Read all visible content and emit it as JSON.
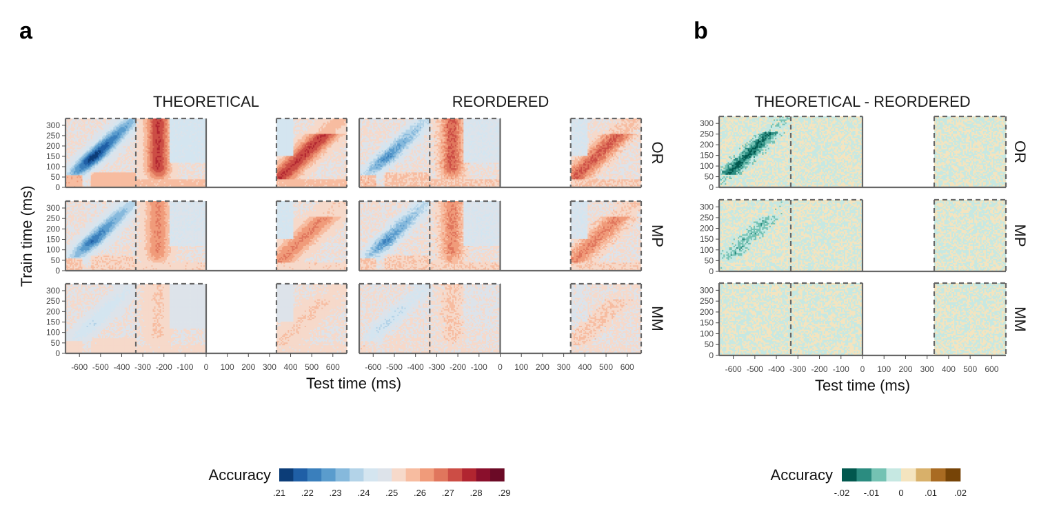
{
  "panels": {
    "a": {
      "letter": "a"
    },
    "b": {
      "letter": "b"
    }
  },
  "chart_data": [
    {
      "type": "heatmap",
      "panel": "a",
      "facet_titles": [
        "THEORETICAL",
        "REORDERED"
      ],
      "rows": [
        "OR",
        "MP",
        "MM"
      ],
      "xlabel": "Test time (ms)",
      "ylabel": "Train time (ms)",
      "xlim": [
        -666,
        666
      ],
      "ylim": [
        0,
        333
      ],
      "xticks": [
        -600,
        -500,
        -400,
        -300,
        -200,
        -100,
        0,
        100,
        200,
        300,
        400,
        500,
        600
      ],
      "xtick_labels": [
        "-600",
        "-500",
        "-400",
        "-300",
        "-200",
        "-100",
        "0",
        "100",
        "200",
        "300",
        "400",
        "500",
        "600"
      ],
      "yticks": [
        0,
        50,
        100,
        150,
        200,
        250,
        300
      ],
      "ytick_labels": [
        "0",
        "50",
        "100",
        "150",
        "200",
        "250",
        "300"
      ],
      "segment_boundaries": [
        -333,
        0,
        333
      ],
      "empty_segment": [
        0,
        333
      ],
      "peak_values": {
        "THEORETICAL": {
          "OR": 0.21,
          "MP": 0.22,
          "MM": 0.24
        },
        "REORDERED": {
          "OR": 0.225,
          "MP": 0.225,
          "MM": 0.24
        }
      },
      "positive_peak_values": {
        "THEORETICAL": {
          "OR": 0.275,
          "MP": 0.265,
          "MM": 0.255
        },
        "REORDERED": {
          "OR": 0.27,
          "MP": 0.265,
          "MM": 0.255
        }
      },
      "baseline_value": 0.25,
      "legend": {
        "title": "Accuracy",
        "colors": [
          "#0c3d78",
          "#1f5fa6",
          "#3a7fbc",
          "#5a9ccd",
          "#86b9dc",
          "#b3d3e8",
          "#d4e5f0",
          "#dde3ea",
          "#f6d9ca",
          "#f7bca0",
          "#f09b7a",
          "#e0765d",
          "#cc4d45",
          "#b12530",
          "#8a0f2c",
          "#6b0a26"
        ],
        "tick_labels": [
          ".21",
          ".22",
          ".23",
          ".24",
          ".25",
          ".26",
          ".27",
          ".28",
          ".29"
        ],
        "range": [
          0.21,
          0.29
        ]
      }
    },
    {
      "type": "heatmap",
      "panel": "b",
      "facet_titles": [
        "THEORETICAL - REORDERED"
      ],
      "rows": [
        "OR",
        "MP",
        "MM"
      ],
      "xlabel": "Test time (ms)",
      "ylabel": "",
      "xlim": [
        -666,
        666
      ],
      "ylim": [
        0,
        333
      ],
      "xticks": [
        -600,
        -500,
        -400,
        -300,
        -200,
        -100,
        0,
        100,
        200,
        300,
        400,
        500,
        600
      ],
      "xtick_labels": [
        "-600",
        "-500",
        "-400",
        "-300",
        "-200",
        "-100",
        "0",
        "100",
        "200",
        "300",
        "400",
        "500",
        "600"
      ],
      "yticks": [
        0,
        50,
        100,
        150,
        200,
        250,
        300
      ],
      "ytick_labels": [
        "0",
        "50",
        "100",
        "150",
        "200",
        "250",
        "300"
      ],
      "segment_boundaries": [
        -333,
        0,
        333
      ],
      "empty_segment": [
        0,
        333
      ],
      "peak_values": {
        "OR": -0.015,
        "MP": -0.007,
        "MM": 0.0
      },
      "legend": {
        "title": "Accuracy",
        "colors": [
          "#01584e",
          "#2b8c80",
          "#74c2b3",
          "#c6e8e2",
          "#f4e4bf",
          "#d8b06a",
          "#a96b22",
          "#764407"
        ],
        "tick_labels": [
          "-.02",
          "-.01",
          "0",
          ".01",
          ".02"
        ],
        "range": [
          -0.02,
          0.02
        ]
      }
    }
  ]
}
